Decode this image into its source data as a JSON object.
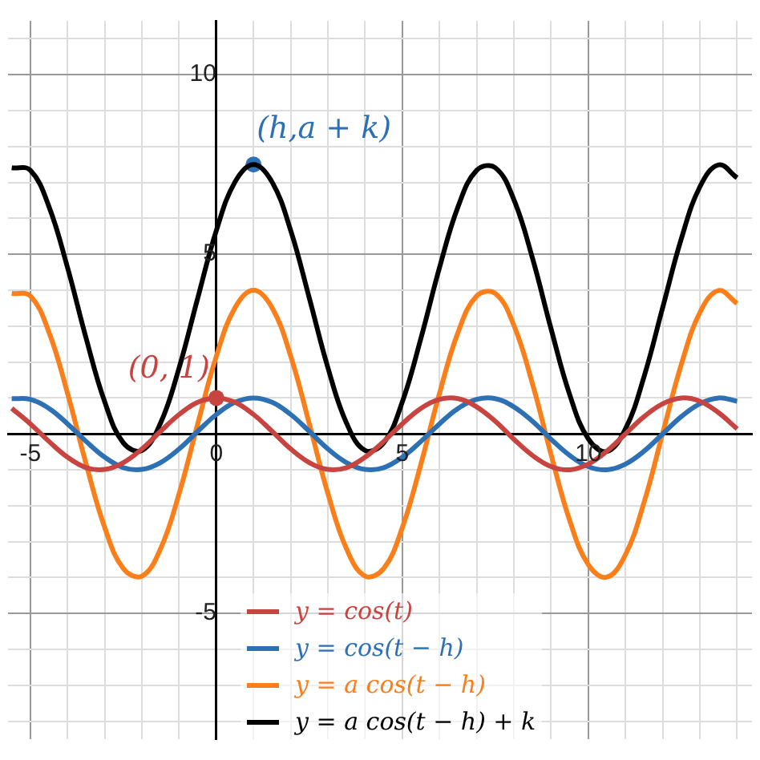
{
  "chart_data": {
    "type": "line",
    "x": [
      -5.5,
      -5,
      -4.5,
      -4,
      -3.5,
      -3,
      -2.5,
      -2,
      -1.5,
      -1,
      -0.5,
      0,
      0.5,
      1,
      1.5,
      2,
      2.5,
      3,
      3.5,
      4,
      4.5,
      5,
      5.5,
      6,
      6.5,
      7,
      7.5,
      8,
      8.5,
      9,
      9.5,
      10,
      10.5,
      11,
      11.5,
      12,
      12.5,
      13,
      13.5,
      14
    ],
    "series": [
      {
        "name": "y = cos(t)",
        "color": "#c74440",
        "values": [
          0.71,
          0.28,
          -0.21,
          -0.65,
          -0.94,
          -0.99,
          -0.8,
          -0.42,
          0.07,
          0.54,
          0.88,
          1,
          0.88,
          0.54,
          0.07,
          -0.42,
          -0.8,
          -0.99,
          -0.94,
          -0.65,
          -0.21,
          0.28,
          0.71,
          0.96,
          0.98,
          0.75,
          0.35,
          -0.15,
          -0.6,
          -0.91,
          -1,
          -0.84,
          -0.48,
          0,
          0.48,
          0.84,
          1,
          0.91,
          0.59,
          0.14
        ]
      },
      {
        "name": "y = cos(t − h)",
        "color": "#2d70b3",
        "values": [
          0.98,
          0.96,
          0.71,
          0.28,
          -0.21,
          -0.65,
          -0.94,
          -0.99,
          -0.8,
          -0.42,
          0.07,
          0.54,
          0.88,
          1,
          0.88,
          0.54,
          0.07,
          -0.42,
          -0.8,
          -0.99,
          -0.94,
          -0.65,
          -0.21,
          0.28,
          0.71,
          0.96,
          0.98,
          0.75,
          0.35,
          -0.15,
          -0.6,
          -0.91,
          -1,
          -0.84,
          -0.48,
          0,
          0.48,
          0.84,
          1,
          0.91
        ]
      },
      {
        "name": "y = a cos(t − h)",
        "color": "#fa7e19",
        "values": [
          3.91,
          3.84,
          2.83,
          1.13,
          -0.84,
          -2.61,
          -3.75,
          -3.96,
          -3.2,
          -1.66,
          0.28,
          2.16,
          3.51,
          4,
          3.51,
          2.16,
          0.28,
          -1.66,
          -3.2,
          -3.96,
          -3.75,
          -2.61,
          -0.84,
          1.13,
          2.83,
          3.84,
          3.91,
          3.02,
          1.39,
          -0.58,
          -2.41,
          -3.64,
          -3.99,
          -3.36,
          -1.9,
          0.02,
          1.93,
          3.38,
          3.99,
          3.63
        ]
      },
      {
        "name": "y = a cos(t − h) + k",
        "color": "#000000",
        "values": [
          7.41,
          7.34,
          6.33,
          4.63,
          2.66,
          0.89,
          -0.25,
          -0.46,
          0.3,
          1.84,
          3.78,
          5.66,
          7.01,
          7.5,
          7.01,
          5.66,
          3.78,
          1.84,
          0.3,
          -0.46,
          -0.25,
          0.89,
          2.66,
          4.63,
          6.33,
          7.34,
          7.41,
          6.52,
          4.89,
          2.92,
          1.09,
          -0.14,
          -0.49,
          0.14,
          1.6,
          3.52,
          5.43,
          6.88,
          7.49,
          7.13
        ]
      },
      {
        "type": "scatter",
        "color": "#c74440",
        "x": [
          0
        ],
        "values": [
          1
        ]
      },
      {
        "type": "scatter",
        "color": "#2d70b3",
        "x": [
          1
        ],
        "values": [
          7.5
        ]
      }
    ],
    "annotations": [
      {
        "text": "(0, 1)",
        "x": 0,
        "y": 1
      },
      {
        "text": "(h,a + k)",
        "x": 1,
        "y": 7.5
      }
    ],
    "xlim": [
      -5.6,
      14.4
    ],
    "ylim": [
      -8.5,
      11.5
    ],
    "xticks": [
      {
        "value": -5,
        "label": "-5"
      },
      {
        "value": -4,
        "label": null
      },
      {
        "value": -3,
        "label": null
      },
      {
        "value": -2,
        "label": null
      },
      {
        "value": -1,
        "label": null
      },
      {
        "value": 0,
        "label": "0"
      },
      {
        "value": 1,
        "label": null
      },
      {
        "value": 2,
        "label": null
      },
      {
        "value": 3,
        "label": null
      },
      {
        "value": 4,
        "label": null
      },
      {
        "value": 5,
        "label": "5"
      },
      {
        "value": 6,
        "label": null
      },
      {
        "value": 7,
        "label": null
      },
      {
        "value": 8,
        "label": null
      },
      {
        "value": 9,
        "label": null
      },
      {
        "value": 10,
        "label": "10"
      },
      {
        "value": 11,
        "label": null
      },
      {
        "value": 12,
        "label": null
      },
      {
        "value": 13,
        "label": null
      },
      {
        "value": 14,
        "label": null
      }
    ],
    "yticks": [
      {
        "value": -8,
        "label": null
      },
      {
        "value": -7,
        "label": null
      },
      {
        "value": -6,
        "label": null
      },
      {
        "value": -5,
        "label": "-5"
      },
      {
        "value": -4,
        "label": null
      },
      {
        "value": -3,
        "label": null
      },
      {
        "value": -2,
        "label": null
      },
      {
        "value": -1,
        "label": null
      },
      {
        "value": 0,
        "label": null
      },
      {
        "value": 1,
        "label": null
      },
      {
        "value": 2,
        "label": null
      },
      {
        "value": 3,
        "label": null
      },
      {
        "value": 4,
        "label": null
      },
      {
        "value": 5,
        "label": "5"
      },
      {
        "value": 6,
        "label": null
      },
      {
        "value": 7,
        "label": null
      },
      {
        "value": 8,
        "label": null
      },
      {
        "value": 9,
        "label": null
      },
      {
        "value": 10,
        "label": "10"
      },
      {
        "value": 11,
        "label": null
      }
    ],
    "grid": true,
    "legend": "bottom",
    "line_style": "solid"
  }
}
